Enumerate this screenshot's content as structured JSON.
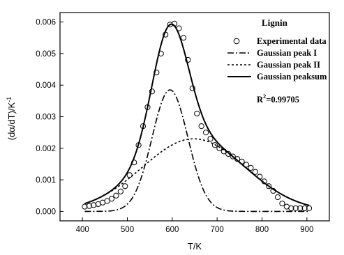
{
  "chart_data": {
    "type": "line",
    "title": "Lignin",
    "xlabel": "T/K",
    "ylabel": "(dα/dT)/K",
    "ylabel_superscript": "-1",
    "xlim": [
      350,
      950
    ],
    "ylim": [
      -0.0003,
      0.0063
    ],
    "xticks": [
      400,
      500,
      600,
      700,
      800,
      900
    ],
    "yticks": [
      0.0,
      0.001,
      0.002,
      0.003,
      0.004,
      0.005,
      0.006
    ],
    "xtick_labels": [
      "400",
      "500",
      "600",
      "700",
      "800",
      "900"
    ],
    "ytick_labels": [
      "0.000",
      "0.001",
      "0.002",
      "0.003",
      "0.004",
      "0.005",
      "0.006"
    ],
    "grid": false,
    "legend_position": "top-right",
    "annotation": {
      "text": "R",
      "superscript": "2",
      "value_text": "=0.99705"
    },
    "series": [
      {
        "name": "Experimental data",
        "style": "open-circles",
        "x": [
          405,
          415,
          425,
          435,
          445,
          455,
          465,
          475,
          485,
          495,
          505,
          515,
          525,
          535,
          545,
          555,
          565,
          575,
          585,
          595,
          605,
          615,
          625,
          635,
          645,
          655,
          665,
          675,
          685,
          695,
          705,
          715,
          725,
          735,
          745,
          755,
          765,
          775,
          785,
          795,
          805,
          815,
          825,
          835,
          845,
          855,
          865,
          875,
          885,
          895,
          905
        ],
        "y": [
          0.00015,
          0.00017,
          0.0002,
          0.00023,
          0.00028,
          0.00033,
          0.0004,
          0.0005,
          0.00063,
          0.0008,
          0.00115,
          0.00155,
          0.0021,
          0.0027,
          0.0033,
          0.0038,
          0.0044,
          0.005,
          0.0056,
          0.00592,
          0.00595,
          0.0058,
          0.0055,
          0.0048,
          0.0039,
          0.0031,
          0.0027,
          0.0025,
          0.0023,
          0.0021,
          0.002,
          0.0019,
          0.00182,
          0.00174,
          0.00166,
          0.00158,
          0.00148,
          0.00138,
          0.00125,
          0.0011,
          0.00095,
          0.0008,
          0.00065,
          0.00045,
          0.00025,
          0.00015,
          0.0001,
          0.0001,
          0.0001,
          0.0001,
          0.0001
        ]
      },
      {
        "name": "Gaussian peak I",
        "style": "dash-dot",
        "peak_x": 595,
        "peak_y": 0.00385,
        "sigma": 40
      },
      {
        "name": "Gaussian peak II",
        "style": "dashed",
        "peak_x": 648,
        "peak_y": 0.0023,
        "sigma": 115
      },
      {
        "name": "Gaussian peaksum",
        "style": "solid",
        "note_sum_of": [
          "Gaussian peak I",
          "Gaussian peak II"
        ]
      }
    ]
  }
}
